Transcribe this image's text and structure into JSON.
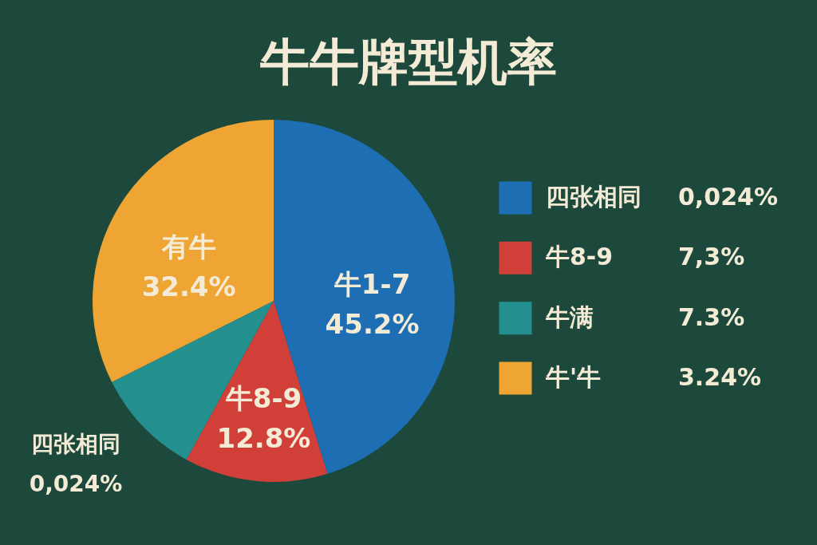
{
  "chart_data": [
    {
      "type": "pie",
      "title": "牛牛牌型机率",
      "categories": [
        "牛1-7",
        "牛8-9",
        null,
        "有牛"
      ],
      "values": [
        45.2,
        12.8,
        9.6,
        32.4
      ],
      "colors": [
        "#1e6eb4",
        "#d04039",
        "#23908f",
        "#eea534"
      ],
      "value_labels": [
        "45.2%",
        "12.8%",
        null,
        "32.4%"
      ],
      "annotations": [
        "四张相同",
        "0,024%"
      ]
    },
    {
      "type": "other",
      "categories": [
        "四张相同",
        "牛8-9",
        "牛满",
        "牛'牛"
      ],
      "value_labels": [
        "0,024%",
        "7,3%",
        "7.3%",
        "3.24%"
      ],
      "colors": [
        "#1e6eb4",
        "#d04039",
        "#23908f",
        "#eea534"
      ]
    }
  ]
}
